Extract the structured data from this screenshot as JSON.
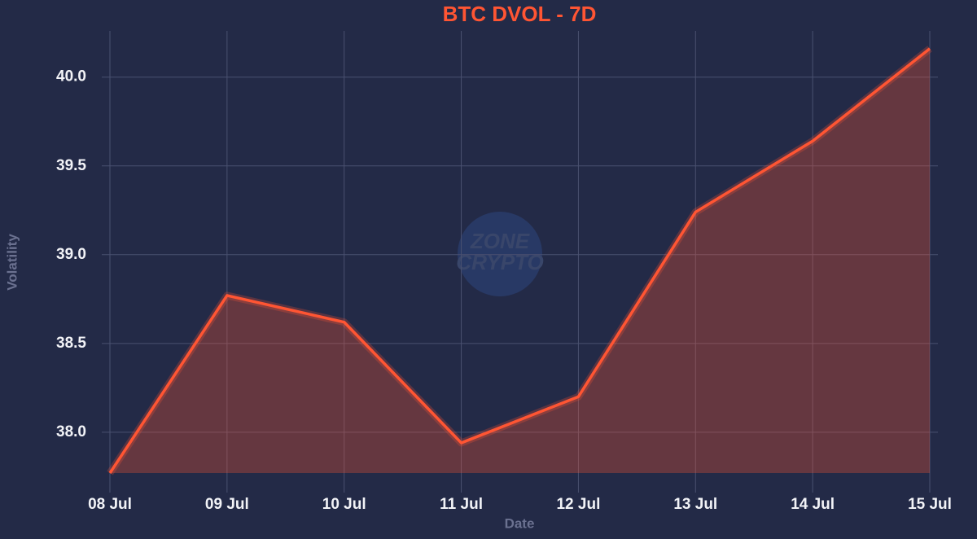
{
  "chart_data": {
    "type": "area",
    "title": "BTC DVOL - 7D",
    "xlabel": "Date",
    "ylabel": "Volatility",
    "watermark": [
      "ZONE",
      "CRYPTO"
    ],
    "categories": [
      "08 Jul",
      "09 Jul",
      "10 Jul",
      "11 Jul",
      "12 Jul",
      "13 Jul",
      "14 Jul",
      "15 Jul"
    ],
    "values": [
      37.77,
      38.77,
      38.62,
      37.94,
      38.2,
      39.24,
      39.64,
      40.16
    ],
    "color": "#ff5533",
    "ylim": [
      37.66,
      40.26
    ],
    "yticks": [
      {
        "value": 38,
        "label": "38.0"
      },
      38.5,
      {
        "value": 39,
        "label": "39.0"
      },
      39.5,
      {
        "value": 40,
        "label": "40.0"
      }
    ],
    "grid": true
  }
}
